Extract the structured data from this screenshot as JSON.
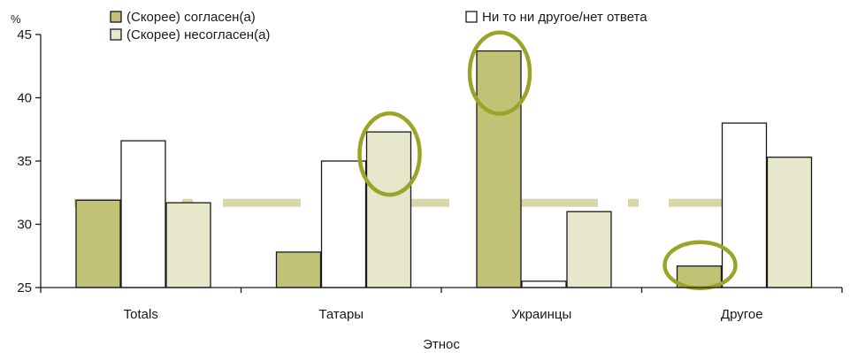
{
  "chart_data": {
    "type": "bar",
    "unit_label": "%",
    "xlabel": "Этнос",
    "ylabel": "",
    "ylim": [
      25,
      45
    ],
    "yticks": [
      25,
      30,
      35,
      40,
      45
    ],
    "categories": [
      "Totals",
      "Татары",
      "Украинцы",
      "Другое"
    ],
    "series": [
      {
        "name": "(Скорее) согласен(а)",
        "color": "#c2c277",
        "values": [
          31.9,
          27.8,
          43.7,
          26.7
        ]
      },
      {
        "name": "Ни то ни другое/нет ответа",
        "color": "#ffffff",
        "values": [
          36.6,
          35.0,
          25.5,
          38.0
        ]
      },
      {
        "name": "(Скорее) несогласен(а)",
        "color": "#e7e7cb",
        "values": [
          31.7,
          37.3,
          31.0,
          35.3
        ]
      }
    ],
    "reference_line": {
      "value": 31.7,
      "style": "dashed",
      "color": "#d6d6a8"
    },
    "highlights": [
      {
        "category": "Татары",
        "series": "(Скорее) несогласен(а)",
        "color": "#9aa428"
      },
      {
        "category": "Украинцы",
        "series": "(Скорее) согласен(а)",
        "color": "#9aa428"
      },
      {
        "category": "Другое",
        "series": "(Скорее) согласен(а)",
        "color": "#9aa428"
      }
    ],
    "legend_position": "top",
    "grid": false
  }
}
